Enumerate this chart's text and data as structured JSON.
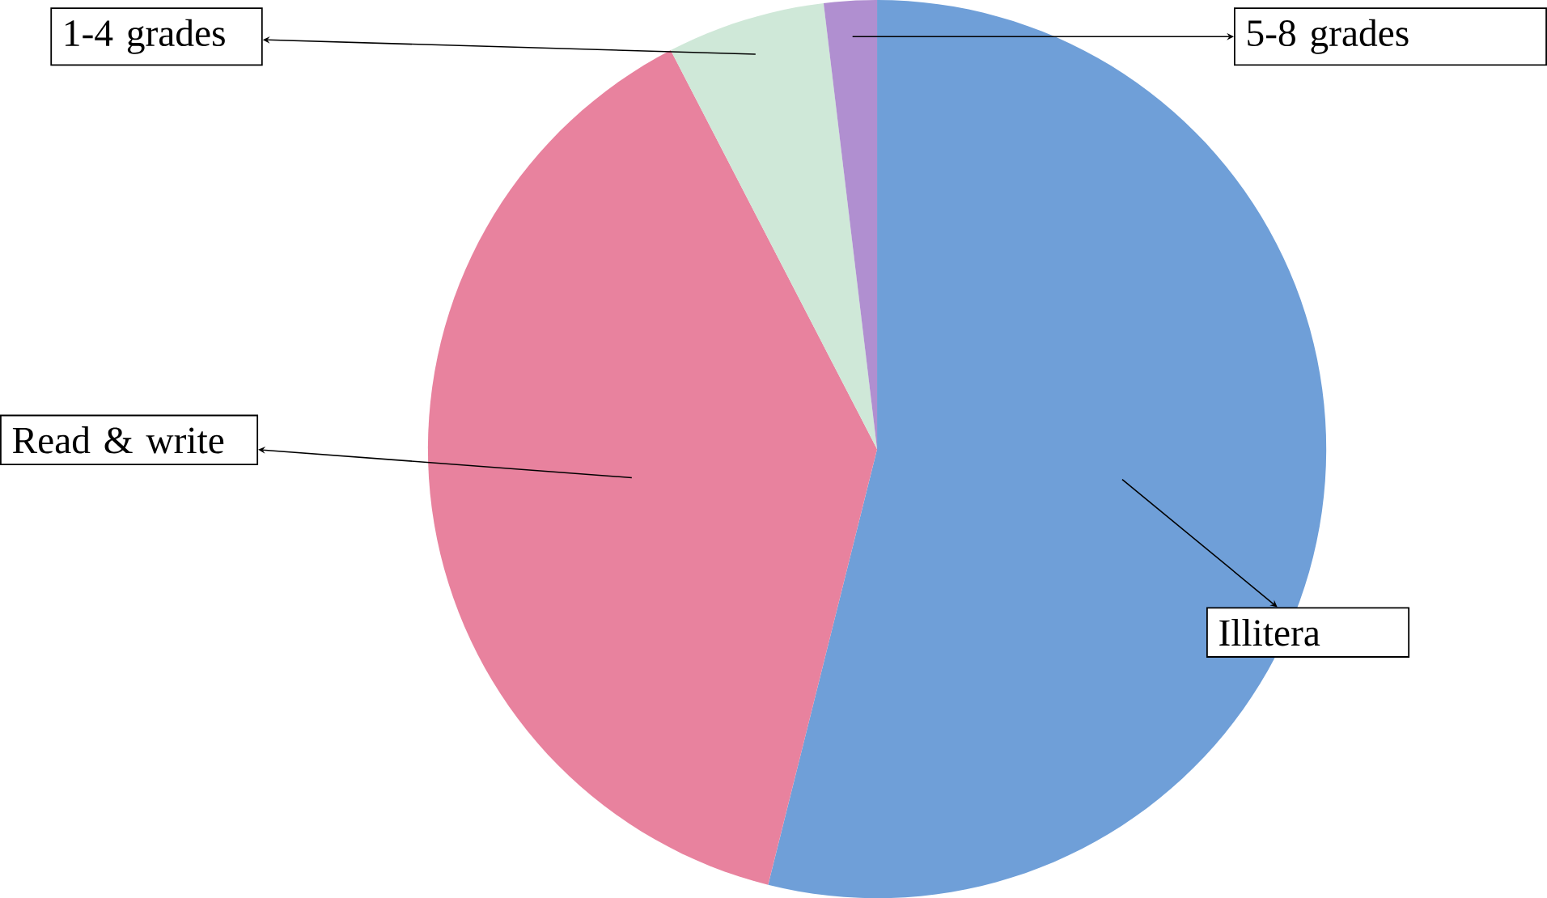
{
  "chart_data": {
    "type": "pie",
    "categories": [
      "Illitera",
      "Read & write",
      "1-4 grades",
      "5-8 grades"
    ],
    "values": [
      53.9,
      38.5,
      5.7,
      1.9
    ],
    "colors": [
      "#6f9fd8",
      "#e8829e",
      "#cfe8d8",
      "#b08fd0"
    ]
  }
}
